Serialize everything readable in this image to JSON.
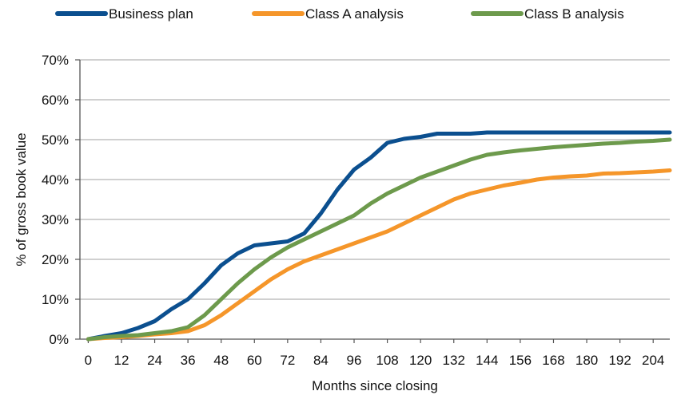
{
  "chart_data": {
    "type": "line",
    "title": "",
    "xlabel": "Months since closing",
    "ylabel": "% of gross book value",
    "x_ticks": [
      0,
      12,
      24,
      36,
      48,
      60,
      72,
      84,
      96,
      108,
      120,
      132,
      144,
      156,
      168,
      180,
      192,
      204
    ],
    "x_tick_labels": [
      "0",
      "12",
      "24",
      "36",
      "48",
      "60",
      "72",
      "84",
      "96",
      "108",
      "120",
      "132",
      "144",
      "156",
      "168",
      "180",
      "192",
      "204"
    ],
    "xlim": [
      -3,
      210
    ],
    "ylim": [
      0,
      70
    ],
    "y_ticks": [
      0,
      10,
      20,
      30,
      40,
      50,
      60,
      70
    ],
    "y_tick_labels": [
      "0%",
      "10%",
      "20%",
      "30%",
      "40%",
      "50%",
      "60%",
      "70%"
    ],
    "grid": "horizontal",
    "legend_position": "top",
    "series": [
      {
        "name": "Business plan",
        "color": "#0b4f8f",
        "x": [
          0,
          6,
          12,
          18,
          24,
          30,
          36,
          42,
          48,
          54,
          60,
          66,
          72,
          78,
          84,
          90,
          96,
          102,
          108,
          114,
          120,
          126,
          132,
          138,
          144,
          156,
          168,
          180,
          192,
          204,
          210
        ],
        "y": [
          0,
          0.8,
          1.5,
          2.8,
          4.5,
          7.5,
          10,
          14,
          18.5,
          21.5,
          23.5,
          24,
          24.5,
          26.5,
          31.5,
          37.5,
          42.5,
          45.5,
          49.2,
          50.2,
          50.7,
          51.5,
          51.5,
          51.5,
          51.8,
          51.8,
          51.8,
          51.8,
          51.8,
          51.8,
          51.8
        ]
      },
      {
        "name": "Class A analysis",
        "color": "#f5962a",
        "x": [
          0,
          6,
          12,
          18,
          24,
          30,
          36,
          42,
          48,
          54,
          60,
          66,
          72,
          78,
          84,
          90,
          96,
          102,
          108,
          114,
          120,
          126,
          132,
          138,
          144,
          150,
          156,
          162,
          168,
          174,
          180,
          186,
          192,
          198,
          204,
          210
        ],
        "y": [
          0,
          0.3,
          0.5,
          0.8,
          1.2,
          1.5,
          2,
          3.5,
          6,
          9,
          12,
          15,
          17.5,
          19.5,
          21,
          22.5,
          24,
          25.5,
          27,
          29,
          31,
          33,
          35,
          36.5,
          37.5,
          38.5,
          39.2,
          40,
          40.5,
          40.8,
          41,
          41.5,
          41.6,
          41.8,
          42,
          42.3
        ]
      },
      {
        "name": "Class B analysis",
        "color": "#6d9a4c",
        "x": [
          0,
          6,
          12,
          18,
          24,
          30,
          36,
          42,
          48,
          54,
          60,
          66,
          72,
          78,
          84,
          90,
          96,
          102,
          108,
          114,
          120,
          126,
          132,
          138,
          144,
          150,
          156,
          162,
          168,
          174,
          180,
          186,
          192,
          198,
          204,
          210
        ],
        "y": [
          0,
          0.5,
          0.8,
          1,
          1.5,
          2,
          3,
          6,
          10,
          14,
          17.5,
          20.5,
          23,
          25,
          27,
          29,
          31,
          34,
          36.5,
          38.5,
          40.5,
          42,
          43.5,
          45,
          46.2,
          46.8,
          47.3,
          47.7,
          48.1,
          48.4,
          48.7,
          49,
          49.2,
          49.5,
          49.7,
          50
        ]
      }
    ]
  }
}
